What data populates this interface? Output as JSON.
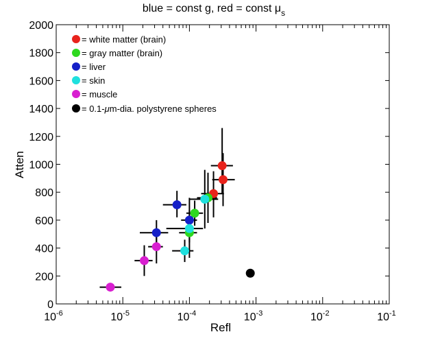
{
  "chart_data": {
    "type": "scatter",
    "title": "blue = const g, red = const μ",
    "title_subscript": "s",
    "xlabel": "Refl",
    "ylabel": "Atten",
    "xscale": "log",
    "xlim": [
      1e-06,
      0.1
    ],
    "ylim": [
      0,
      2000
    ],
    "grid": false,
    "legend_position": "upper-left",
    "x_tick_labels": [
      {
        "base": "10",
        "exp": "-6"
      },
      {
        "base": "10",
        "exp": "-5"
      },
      {
        "base": "10",
        "exp": "-4"
      },
      {
        "base": "10",
        "exp": "-3"
      },
      {
        "base": "10",
        "exp": "-2"
      },
      {
        "base": "10",
        "exp": "-1"
      }
    ],
    "y_ticks": [
      0,
      200,
      400,
      600,
      800,
      1000,
      1200,
      1400,
      1600,
      1800,
      2000
    ],
    "series": [
      {
        "name": "= white matter (brain)",
        "color": "#e8231c",
        "points": [
          {
            "x": 0.00031,
            "y": 990,
            "xerr": [
              0.00021,
              0.00045
            ],
            "yerr": [
              790,
              1260
            ]
          },
          {
            "x": 0.00032,
            "y": 890,
            "xerr": [
              0.00022,
              0.00048
            ],
            "yerr": [
              700,
              1080
            ]
          },
          {
            "x": 0.00023,
            "y": 790,
            "xerr": [
              0.00015,
              0.00033
            ],
            "yerr": [
              620,
              950
            ]
          }
        ]
      },
      {
        "name": "= gray matter (brain)",
        "color": "#2ed81f",
        "points": [
          {
            "x": 0.00012,
            "y": 650,
            "xerr": [
              9e-05,
              0.00016
            ],
            "yerr": [
              560,
              740
            ]
          },
          {
            "x": 0.0001,
            "y": 510,
            "xerr": [
              7e-05,
              0.00013
            ],
            "yerr": [
              440,
              590
            ]
          },
          {
            "x": 0.00019,
            "y": 760,
            "xerr": [
              0.00013,
              0.00026
            ],
            "yerr": [
              580,
              940
            ]
          }
        ]
      },
      {
        "name": "= liver",
        "color": "#1520c8",
        "points": [
          {
            "x": 6.5e-05,
            "y": 710,
            "xerr": [
              4e-05,
              9e-05
            ],
            "yerr": [
              620,
              810
            ]
          },
          {
            "x": 0.0001,
            "y": 600,
            "xerr": [
              7.5e-05,
              0.00013
            ],
            "yerr": [
              530,
              670
            ]
          },
          {
            "x": 3.2e-05,
            "y": 510,
            "xerr": [
              1.8e-05,
              4.8e-05
            ],
            "yerr": [
              420,
              600
            ]
          }
        ]
      },
      {
        "name": "= skin",
        "color": "#1fe0de",
        "points": [
          {
            "x": 8.5e-05,
            "y": 380,
            "xerr": [
              5.5e-05,
              0.000115
            ],
            "yerr": [
              300,
              460
            ]
          },
          {
            "x": 0.0001,
            "y": 540,
            "xerr": [
              4.5e-05,
              0.00016
            ],
            "yerr": [
              330,
              760
            ]
          },
          {
            "x": 0.00017,
            "y": 750,
            "xerr": [
              0.0001,
              0.00027
            ],
            "yerr": [
              540,
              960
            ]
          }
        ]
      },
      {
        "name": "= muscle",
        "color": "#d81fd0",
        "points": [
          {
            "x": 6.5e-06,
            "y": 120,
            "xerr": [
              4.5e-06,
              9.5e-06
            ],
            "yerr": [
              95,
              150
            ]
          },
          {
            "x": 2.1e-05,
            "y": 310,
            "xerr": [
              1.5e-05,
              2.8e-05
            ],
            "yerr": [
              200,
              420
            ]
          },
          {
            "x": 3.2e-05,
            "y": 410,
            "xerr": [
              2.4e-05,
              4e-05
            ],
            "yerr": [
              290,
              530
            ]
          }
        ]
      },
      {
        "name_prefix": "= 0.1-",
        "name_mu": "μ",
        "name_suffix": "m-dia. polystyrene spheres",
        "color": "#000000",
        "points": [
          {
            "x": 0.00082,
            "y": 220
          }
        ]
      }
    ]
  }
}
